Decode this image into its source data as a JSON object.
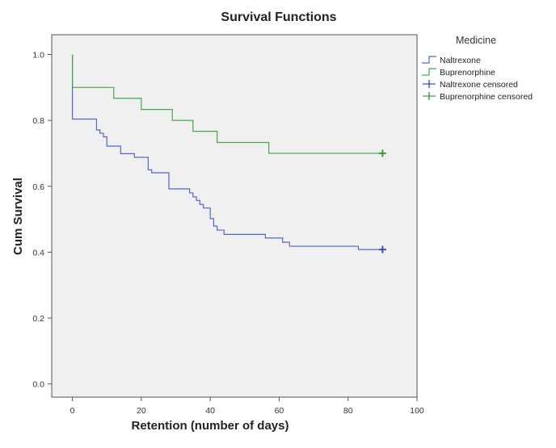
{
  "chart_data": {
    "type": "line",
    "subtype": "kaplan-meier-step",
    "title": "Survival Functions",
    "xlabel": "Retention (number of days)",
    "ylabel": "Cum Survival",
    "xlim": [
      -6,
      100
    ],
    "ylim": [
      -0.04,
      1.06
    ],
    "xticks": [
      0,
      20,
      40,
      60,
      80,
      100
    ],
    "yticks": [
      0.0,
      0.2,
      0.4,
      0.6,
      0.8,
      1.0
    ],
    "xtick_labels": [
      "0",
      "20",
      "40",
      "60",
      "80",
      "100"
    ],
    "ytick_labels": [
      "0.0",
      "0.2",
      "0.4",
      "0.6",
      "0.8",
      "1.0"
    ],
    "grid": false,
    "plot_background": "#f0f0f0",
    "legend": {
      "title": "Medicine",
      "position": "right, outside plot",
      "entries": [
        "Naltrexone",
        "Buprenorphine",
        "Naltrexone censored",
        "Buprenorphine censored"
      ]
    },
    "series": [
      {
        "name": "Naltrexone",
        "color": "#5467c1",
        "x": [
          0,
          0,
          7,
          8,
          9,
          10,
          14,
          18,
          22,
          23,
          28,
          34,
          35,
          36,
          37,
          38,
          40,
          41,
          42,
          44,
          56,
          61,
          63,
          83,
          90
        ],
        "y": [
          1.0,
          0.804,
          0.771,
          0.761,
          0.75,
          0.722,
          0.699,
          0.688,
          0.65,
          0.641,
          0.592,
          0.58,
          0.568,
          0.557,
          0.545,
          0.534,
          0.502,
          0.479,
          0.467,
          0.454,
          0.443,
          0.43,
          0.418,
          0.408,
          0.408
        ]
      },
      {
        "name": "Buprenorphine",
        "color": "#43a84a",
        "x": [
          0,
          0,
          12,
          20,
          29,
          35,
          42,
          57,
          90
        ],
        "y": [
          1.0,
          0.9,
          0.867,
          0.833,
          0.8,
          0.767,
          0.733,
          0.7,
          0.7
        ]
      }
    ],
    "censored": [
      {
        "name": "Naltrexone censored",
        "color": "#3a4fb0",
        "x": 90,
        "y": 0.408
      },
      {
        "name": "Buprenorphine censored",
        "color": "#3c9a42",
        "x": 90,
        "y": 0.7
      }
    ]
  }
}
